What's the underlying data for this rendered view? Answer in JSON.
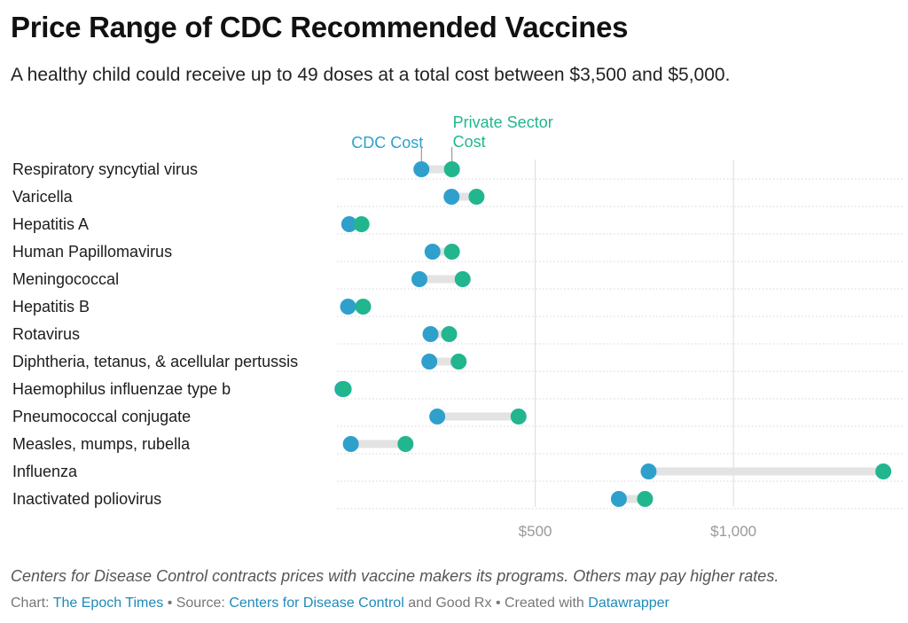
{
  "header": {
    "title": "Price Range of CDC Recommended Vaccines",
    "subtitle": "A healthy child could receive up to 49 doses at a total cost between $3,500 and $5,000."
  },
  "footer": {
    "notes": "Centers for Disease Control contracts prices with vaccine makers its programs. Others may pay higher rates.",
    "chart_prefix": "Chart:",
    "chart_by": "The Epoch Times",
    "source_prefix": "• Source:",
    "source_1": "Centers for Disease Control",
    "source_join": "and Good Rx",
    "created_prefix": "• Created with",
    "created_tool": "Datawrapper"
  },
  "colors": {
    "cdc": "#2fa0cc",
    "private": "#21b68e",
    "range_bar": "#e3e3e3",
    "grid": "#dcdcdc"
  },
  "chart_data": {
    "type": "range-dot",
    "series": [
      {
        "name": "CDC Cost",
        "label": "CDC Cost",
        "color": "#2fa0cc"
      },
      {
        "name": "Private Sector Cost",
        "label": [
          "Private Sector",
          "Cost"
        ],
        "color": "#21b68e"
      }
    ],
    "categories": [
      "Respiratory syncytial virus",
      "Varicella",
      "Hepatitis A",
      "Human Papillomavirus",
      "Meningococcal",
      "Hepatitis B",
      "Rotavirus",
      "Diphtheria, tetanus, & acellular pertussis",
      "Haemophilus influenzae type b",
      "Pneumococcal conjugate",
      "Measles, mumps, rubella",
      "Influenza",
      "Inactivated poliovirus"
    ],
    "cdc_cost": [
      213,
      289,
      31,
      241,
      208,
      28,
      236,
      233,
      14,
      253,
      35,
      786,
      711
    ],
    "private_cost": [
      290,
      352,
      62,
      290,
      317,
      66,
      283,
      307,
      17,
      458,
      173,
      1378,
      777
    ],
    "x_ticks": [
      {
        "value": 500,
        "label": "$500"
      },
      {
        "value": 1000,
        "label": "$1,000"
      }
    ],
    "xlim": [
      0,
      1400
    ],
    "grid": "vertical"
  }
}
